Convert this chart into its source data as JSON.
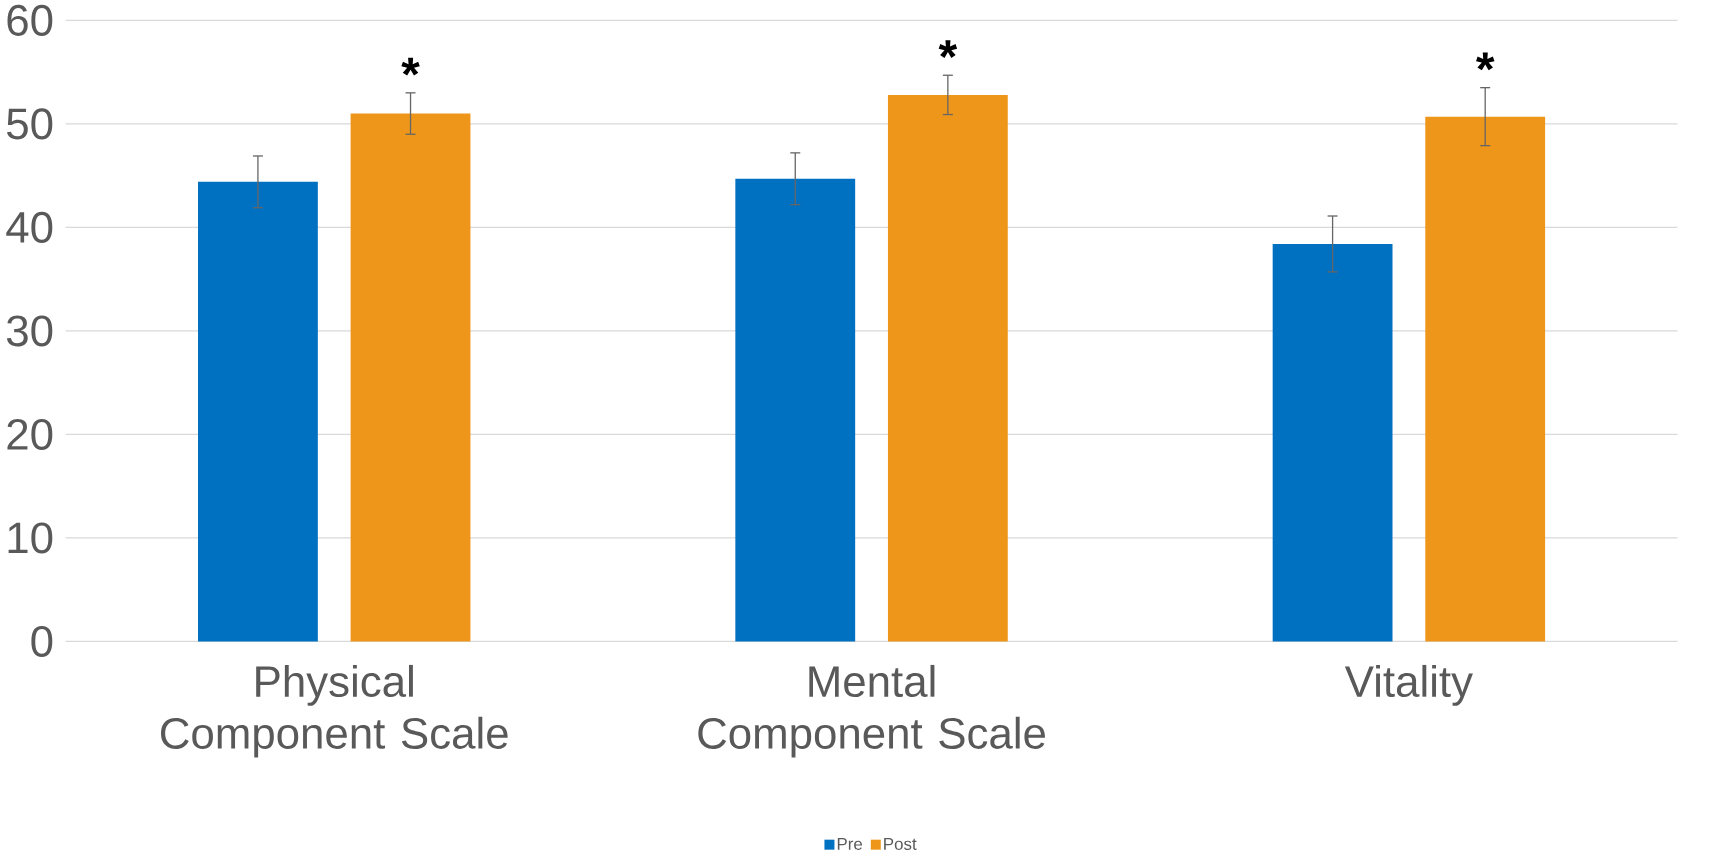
{
  "chart_data": {
    "type": "bar",
    "categories": [
      "Physical Component Scale",
      "Mental Component Scale",
      "Vitality"
    ],
    "series": [
      {
        "name": "Pre",
        "color": "#0070c0",
        "values": [
          44.4,
          44.7,
          38.4
        ],
        "errors": [
          2.5,
          2.5,
          2.7
        ]
      },
      {
        "name": "Post",
        "color": "#ee961a",
        "values": [
          51.0,
          52.8,
          50.7
        ],
        "errors": [
          2.0,
          1.9,
          2.8
        ]
      }
    ],
    "annotations": [
      "*",
      "*",
      "*"
    ],
    "ylim": [
      0,
      60
    ],
    "yticks": [
      0,
      10,
      20,
      30,
      40,
      50,
      60
    ],
    "grid": "y",
    "legend": "bottom"
  }
}
